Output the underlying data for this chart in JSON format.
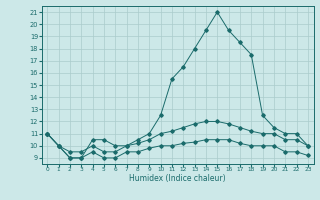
{
  "xlabel": "Humidex (Indice chaleur)",
  "bg_color": "#cce8e8",
  "line_color": "#1a6b6b",
  "grid_color": "#aacccc",
  "xlim": [
    -0.5,
    23.5
  ],
  "ylim": [
    8.5,
    21.5
  ],
  "xticks": [
    0,
    1,
    2,
    3,
    4,
    5,
    6,
    7,
    8,
    9,
    10,
    11,
    12,
    13,
    14,
    15,
    16,
    17,
    18,
    19,
    20,
    21,
    22,
    23
  ],
  "yticks": [
    9,
    10,
    11,
    12,
    13,
    14,
    15,
    16,
    17,
    18,
    19,
    20,
    21
  ],
  "series": {
    "line1": {
      "x": [
        0,
        1,
        2,
        3,
        4,
        5,
        6,
        7,
        8,
        9,
        10,
        11,
        12,
        13,
        14,
        15,
        16,
        17,
        18,
        19,
        20,
        21,
        22,
        23
      ],
      "y": [
        11,
        10,
        9,
        9,
        10.5,
        10.5,
        10,
        10,
        10.5,
        11,
        12.5,
        15.5,
        16.5,
        18,
        19.5,
        21,
        19.5,
        18.5,
        17.5,
        12.5,
        11.5,
        11,
        11,
        10
      ]
    },
    "line2": {
      "x": [
        0,
        1,
        2,
        3,
        4,
        5,
        6,
        7,
        8,
        9,
        10,
        11,
        12,
        13,
        14,
        15,
        16,
        17,
        18,
        19,
        20,
        21,
        22,
        23
      ],
      "y": [
        11,
        10,
        9.5,
        9.5,
        10,
        9.5,
        9.5,
        10,
        10.2,
        10.5,
        11,
        11.2,
        11.5,
        11.8,
        12,
        12,
        11.8,
        11.5,
        11.2,
        11,
        11,
        10.5,
        10.5,
        10
      ]
    },
    "line3": {
      "x": [
        0,
        1,
        2,
        3,
        4,
        5,
        6,
        7,
        8,
        9,
        10,
        11,
        12,
        13,
        14,
        15,
        16,
        17,
        18,
        19,
        20,
        21,
        22,
        23
      ],
      "y": [
        11,
        10,
        9,
        9,
        9.5,
        9,
        9,
        9.5,
        9.5,
        9.8,
        10,
        10,
        10.2,
        10.3,
        10.5,
        10.5,
        10.5,
        10.2,
        10,
        10,
        10,
        9.5,
        9.5,
        9.2
      ]
    }
  }
}
